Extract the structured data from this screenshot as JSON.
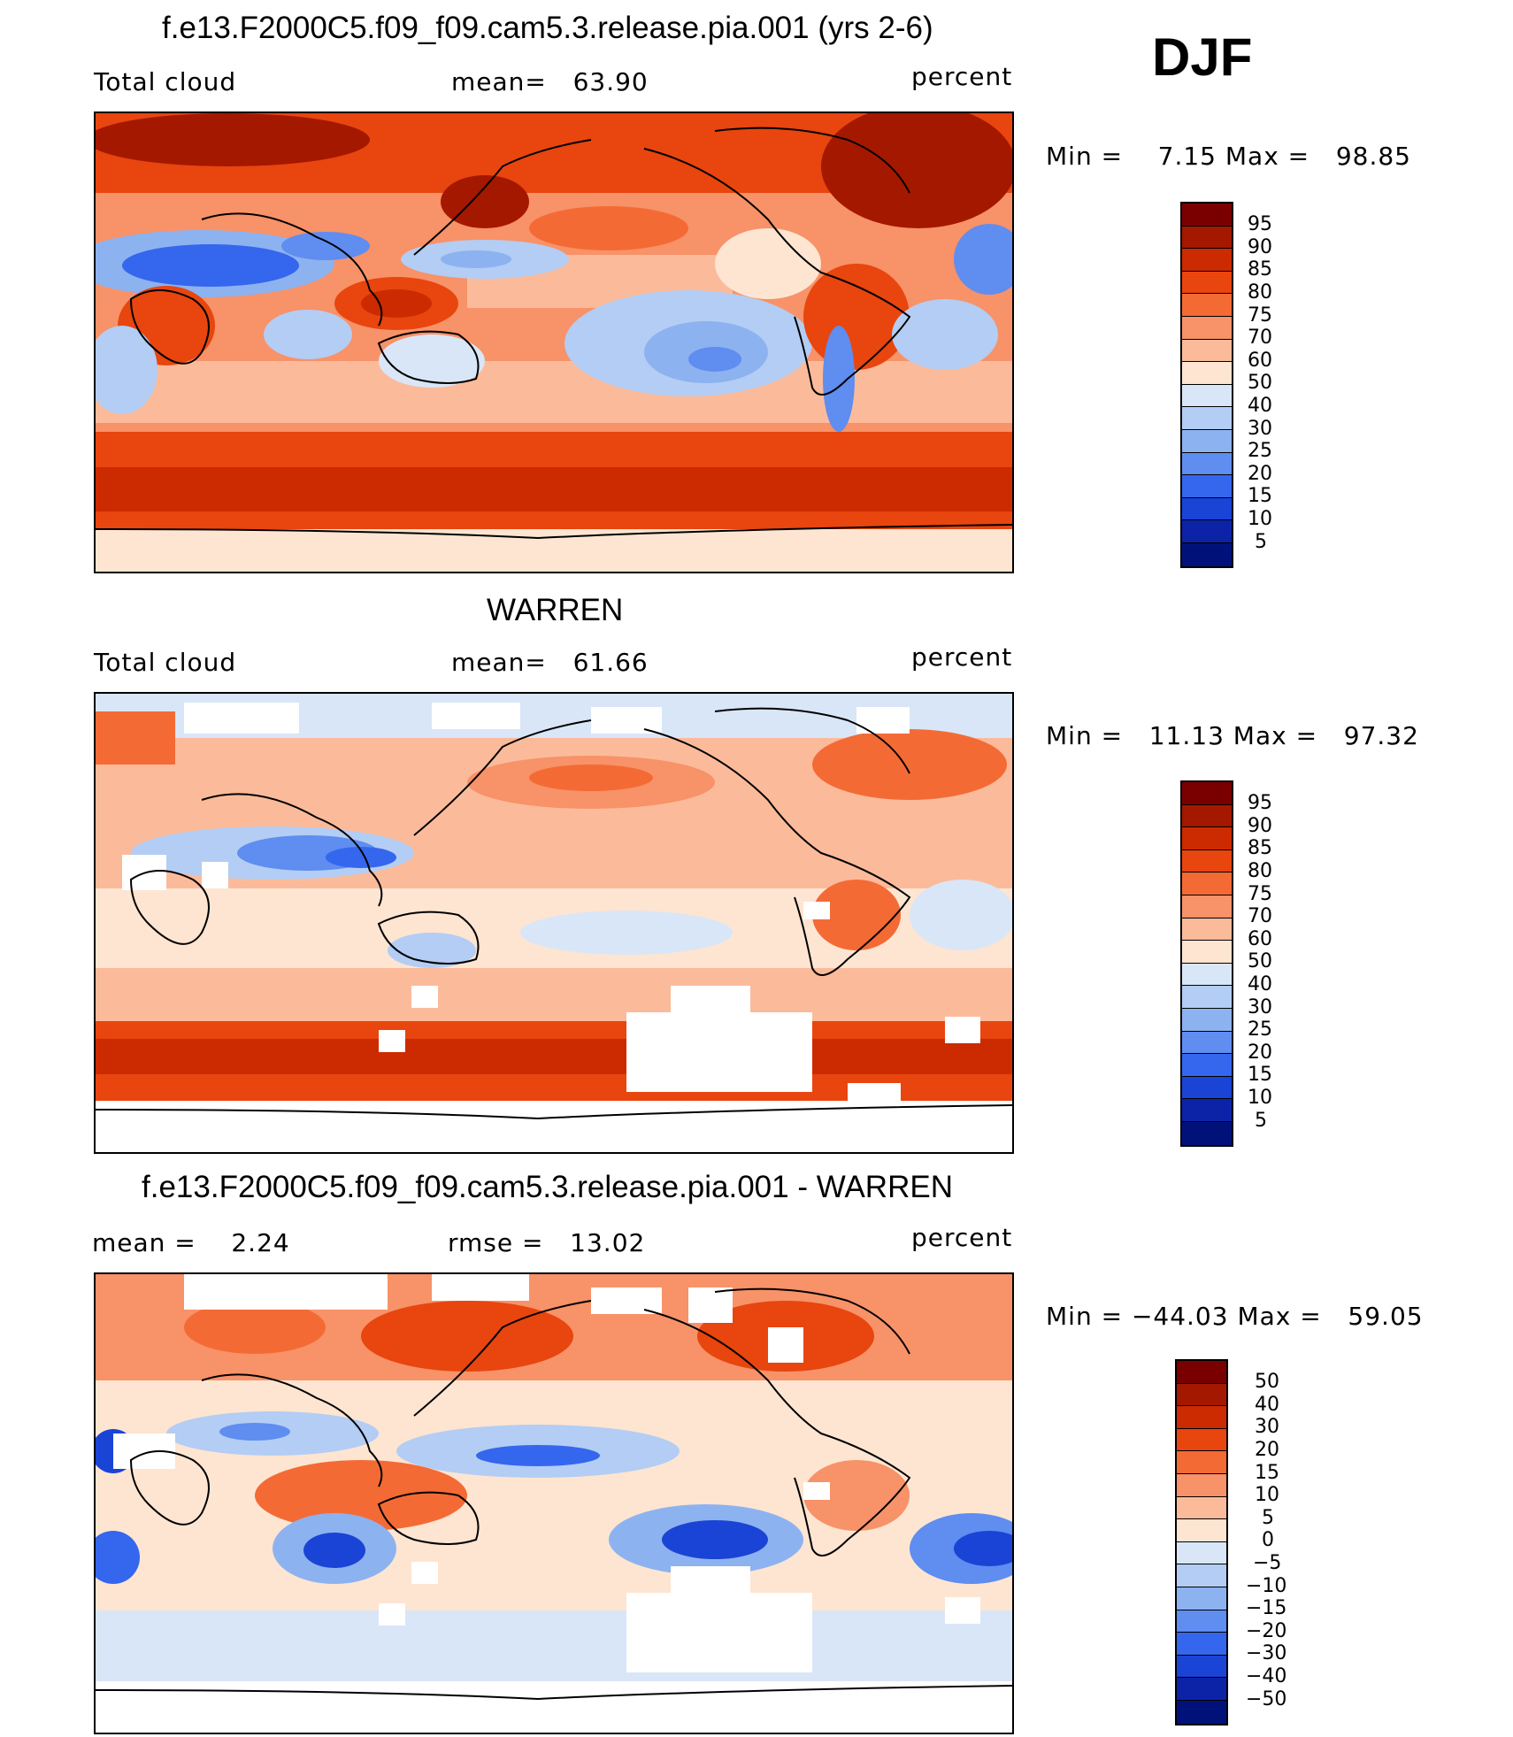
{
  "season": "DJF",
  "panels": [
    {
      "title": "f.e13.F2000C5.f09_f09.cam5.3.release.pia.001 (yrs 2-6)",
      "left_label": "Total cloud",
      "center_label": "mean=   63.90",
      "units": "percent",
      "minmax": "Min =    7.15 Max =   98.85",
      "colorbar_labels": [
        "95",
        "90",
        "85",
        "80",
        "75",
        "70",
        "60",
        "50",
        "40",
        "30",
        "25",
        "20",
        "15",
        "10",
        "5"
      ]
    },
    {
      "title": "WARREN",
      "left_label": "Total cloud",
      "center_label": "mean=   61.66",
      "units": "percent",
      "minmax": "Min =   11.13 Max =   97.32",
      "colorbar_labels": [
        "95",
        "90",
        "85",
        "80",
        "75",
        "70",
        "60",
        "50",
        "40",
        "30",
        "25",
        "20",
        "15",
        "10",
        "5"
      ]
    },
    {
      "title": "f.e13.F2000C5.f09_f09.cam5.3.release.pia.001 - WARREN",
      "left_label": "mean =    2.24",
      "center_label": "rmse =   13.02",
      "units": "percent",
      "minmax": "Min = −44.03 Max =   59.05",
      "colorbar_labels": [
        "50",
        "40",
        "30",
        "20",
        "15",
        "10",
        "5",
        "0",
        "−5",
        "−10",
        "−15",
        "−20",
        "−30",
        "−40",
        "−50"
      ]
    }
  ],
  "colors": {
    "scale": [
      "#7a0000",
      "#a41800",
      "#cc2a00",
      "#e8450f",
      "#f46a35",
      "#f89268",
      "#fbbb9a",
      "#fde5d2",
      "#d9e6f7",
      "#b3cdf4",
      "#8db2f0",
      "#5f8df0",
      "#3566ee",
      "#1a44d6",
      "#0c23a8",
      "#00127a"
    ]
  }
}
